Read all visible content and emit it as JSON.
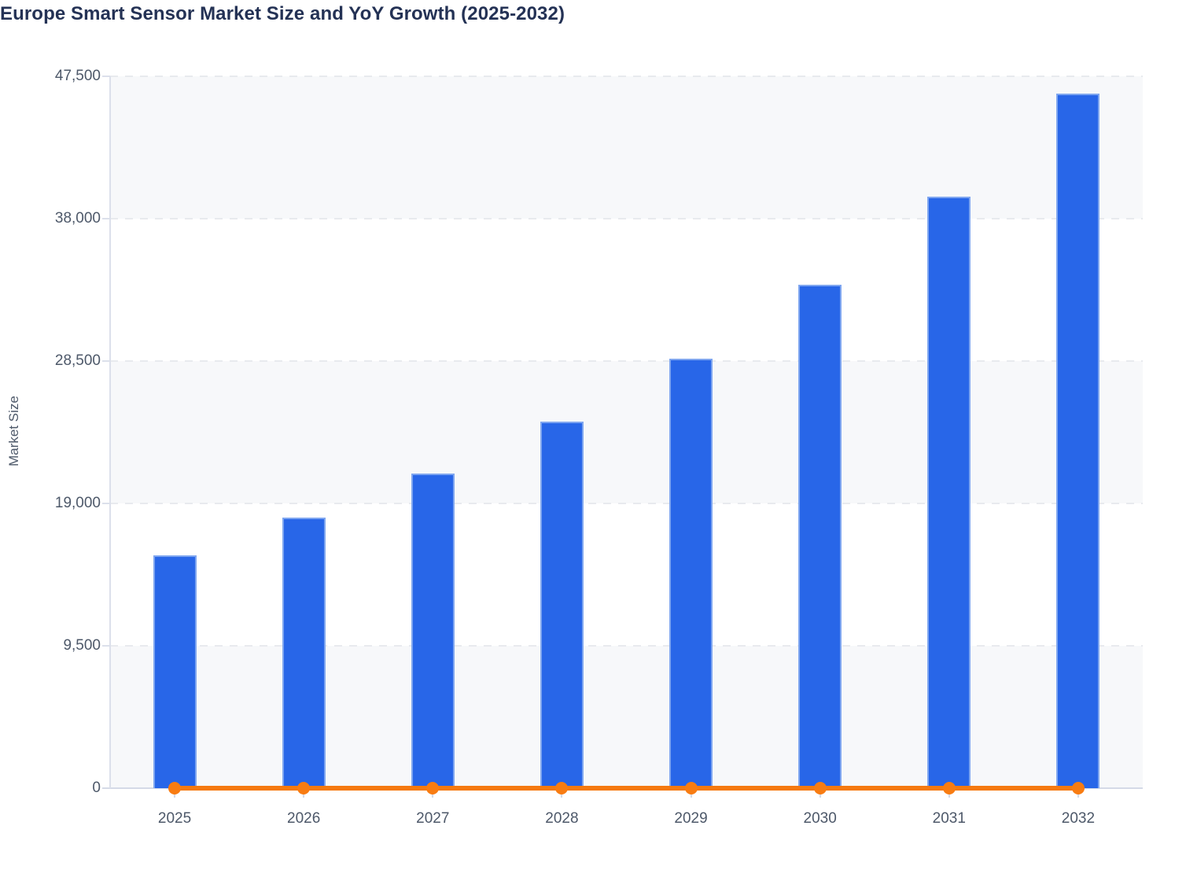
{
  "title": "Europe Smart Sensor Market Size and YoY Growth (2025-2032)",
  "chart_data": {
    "type": "bar",
    "title": "Europe Smart Sensor Market Size and YoY Growth (2025-2032)",
    "categories": [
      "2025",
      "2026",
      "2027",
      "2028",
      "2029",
      "2030",
      "2031",
      "2032"
    ],
    "series": [
      {
        "name": "Market Size",
        "type": "bar",
        "color": "#2866e8",
        "values": [
          15550,
          18050,
          21000,
          24450,
          28650,
          33600,
          39450,
          46350
        ]
      },
      {
        "name": "YoY Growth",
        "type": "line",
        "color": "#f5790f",
        "rendered_values": [
          0,
          0,
          0,
          0,
          0,
          0,
          0,
          0
        ],
        "note": "Orange line with round markers drawn flat along the zero baseline of the Market Size axis; growth percentages are not labeled anywhere in the image."
      }
    ],
    "xlabel": "",
    "ylabel": "Market Size",
    "ylim": [
      0,
      47500
    ],
    "y_ticks": [
      {
        "label": "0",
        "value": 0
      },
      {
        "label": "9,500",
        "value": 9500
      },
      {
        "label": "19,000",
        "value": 19000
      },
      {
        "label": "28,500",
        "value": 28500
      },
      {
        "label": "38,000",
        "value": 38000
      },
      {
        "label": "47,500",
        "value": 47500
      }
    ],
    "grid": "dashed horizontal gridlines at each tick; alternating light band fills between gridlines",
    "legend": "none"
  },
  "colors": {
    "background": "#ffffff",
    "title_text": "#243255",
    "axis_text": "#4d5869",
    "axis_line": "#dce0eb",
    "gridline": "#e8eaee",
    "band_fill": "#f7f8fa",
    "bar_fill": "#2866e8",
    "bar_edge": "#aecaf4",
    "line": "#f5790f",
    "marker": "#f87c12"
  }
}
